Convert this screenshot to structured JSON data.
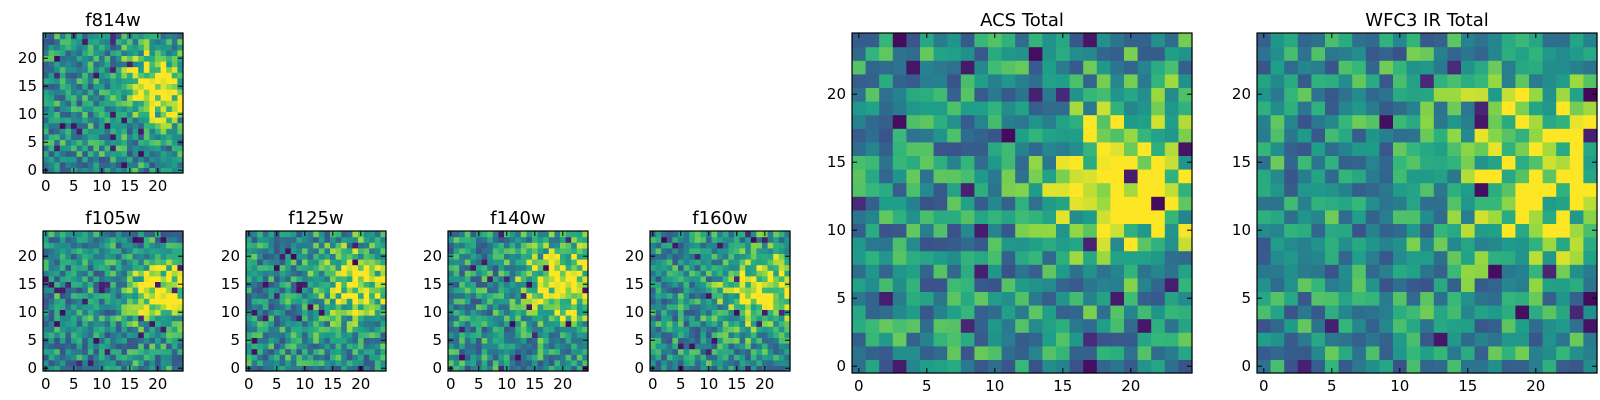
{
  "figure": {
    "colormap": "viridis",
    "grid": false,
    "legend": "none"
  },
  "chart_data": [
    {
      "type": "heatmap",
      "title": "f814w",
      "xlim": [
        0,
        24
      ],
      "ylim": [
        0,
        24
      ],
      "xticks": [
        0,
        5,
        10,
        15,
        20
      ],
      "yticks": [
        0,
        5,
        10,
        15,
        20
      ],
      "grid_size": 25,
      "seed": 11,
      "features": [
        {
          "x": 20,
          "y": 15,
          "sigma": 4,
          "amp": 0.55
        }
      ]
    },
    {
      "type": "heatmap",
      "title": "f105w",
      "xlim": [
        0,
        24
      ],
      "ylim": [
        0,
        24
      ],
      "xticks": [
        0,
        5,
        10,
        15,
        20
      ],
      "yticks": [
        0,
        5,
        10,
        15,
        20
      ],
      "grid_size": 25,
      "seed": 23,
      "features": [
        {
          "x": 21,
          "y": 14,
          "sigma": 4,
          "amp": 0.5
        }
      ]
    },
    {
      "type": "heatmap",
      "title": "f125w",
      "xlim": [
        0,
        24
      ],
      "ylim": [
        0,
        24
      ],
      "xticks": [
        0,
        5,
        10,
        15,
        20
      ],
      "yticks": [
        0,
        5,
        10,
        15,
        20
      ],
      "grid_size": 25,
      "seed": 37,
      "features": [
        {
          "x": 20,
          "y": 15,
          "sigma": 5,
          "amp": 0.35
        }
      ]
    },
    {
      "type": "heatmap",
      "title": "f140w",
      "xlim": [
        0,
        24
      ],
      "ylim": [
        0,
        24
      ],
      "xticks": [
        0,
        5,
        10,
        15,
        20
      ],
      "yticks": [
        0,
        5,
        10,
        15,
        20
      ],
      "grid_size": 25,
      "seed": 41,
      "features": [
        {
          "x": 20,
          "y": 15,
          "sigma": 5,
          "amp": 0.45
        }
      ]
    },
    {
      "type": "heatmap",
      "title": "f160w",
      "xlim": [
        0,
        24
      ],
      "ylim": [
        0,
        24
      ],
      "xticks": [
        0,
        5,
        10,
        15,
        20
      ],
      "yticks": [
        0,
        5,
        10,
        15,
        20
      ],
      "grid_size": 25,
      "seed": 53,
      "features": [
        {
          "x": 20,
          "y": 14,
          "sigma": 5,
          "amp": 0.45
        }
      ]
    },
    {
      "type": "heatmap",
      "title": "ACS Total",
      "xlim": [
        0,
        24
      ],
      "ylim": [
        0,
        24
      ],
      "xticks": [
        0,
        5,
        10,
        15,
        20
      ],
      "yticks": [
        0,
        5,
        10,
        15,
        20
      ],
      "grid_size": 25,
      "seed": 67,
      "features": [
        {
          "x": 20,
          "y": 14,
          "sigma": 4,
          "amp": 0.5
        }
      ]
    },
    {
      "type": "heatmap",
      "title": "WFC3 IR Total",
      "xlim": [
        0,
        24
      ],
      "ylim": [
        0,
        24
      ],
      "xticks": [
        0,
        5,
        10,
        15,
        20
      ],
      "yticks": [
        0,
        5,
        10,
        15,
        20
      ],
      "grid_size": 25,
      "seed": 79,
      "features": [
        {
          "x": 21,
          "y": 15,
          "sigma": 5,
          "amp": 0.4
        }
      ]
    }
  ]
}
